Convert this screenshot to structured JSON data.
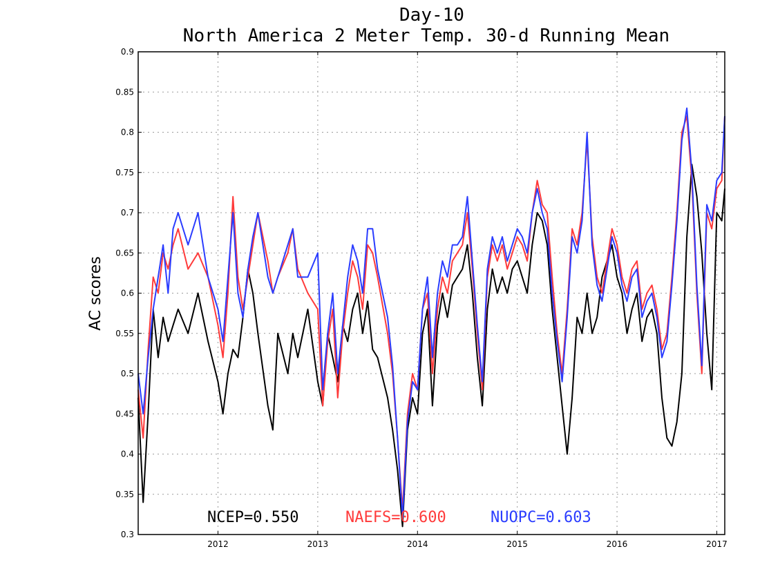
{
  "chart_data": {
    "type": "line",
    "title": "Day-10",
    "subtitle": "North America 2 Meter Temp. 30-d Running Mean",
    "xlabel": "",
    "ylabel": "AC scores",
    "ylim": [
      0.3,
      0.9
    ],
    "xlim": [
      2011.2,
      2017.08
    ],
    "x_ticks": [
      2012,
      2013,
      2014,
      2015,
      2016,
      2017
    ],
    "x_tick_labels": [
      "2012",
      "2013",
      "2014",
      "2015",
      "2016",
      "2017"
    ],
    "y_ticks": [
      0.3,
      0.35,
      0.4,
      0.45,
      0.5,
      0.55,
      0.6,
      0.65,
      0.7,
      0.75,
      0.8,
      0.85,
      0.9
    ],
    "y_tick_labels": [
      "0.3",
      "0.35",
      "0.4",
      "0.45",
      "0.5",
      "0.55",
      "0.6",
      "0.65",
      "0.7",
      "0.75",
      "0.8",
      "0.85",
      "0.9"
    ],
    "grid": true,
    "series": [
      {
        "name": "NCEP",
        "color": "#000000",
        "score_label": "NCEP=0.550",
        "x": [
          2011.2,
          2011.25,
          2011.3,
          2011.35,
          2011.4,
          2011.45,
          2011.5,
          2011.55,
          2011.6,
          2011.7,
          2011.8,
          2011.9,
          2012.0,
          2012.05,
          2012.1,
          2012.15,
          2012.2,
          2012.25,
          2012.3,
          2012.35,
          2012.4,
          2012.5,
          2012.55,
          2012.6,
          2012.7,
          2012.75,
          2012.8,
          2012.9,
          2013.0,
          2013.05,
          2013.1,
          2013.15,
          2013.2,
          2013.25,
          2013.3,
          2013.35,
          2013.4,
          2013.45,
          2013.5,
          2013.55,
          2013.6,
          2013.7,
          2013.75,
          2013.8,
          2013.85,
          2013.9,
          2013.95,
          2014.0,
          2014.05,
          2014.1,
          2014.15,
          2014.2,
          2014.25,
          2014.3,
          2014.35,
          2014.4,
          2014.45,
          2014.5,
          2014.55,
          2014.6,
          2014.65,
          2014.7,
          2014.75,
          2014.8,
          2014.85,
          2014.9,
          2014.95,
          2015.0,
          2015.05,
          2015.1,
          2015.15,
          2015.2,
          2015.25,
          2015.3,
          2015.35,
          2015.4,
          2015.45,
          2015.5,
          2015.55,
          2015.6,
          2015.65,
          2015.7,
          2015.75,
          2015.8,
          2015.85,
          2015.9,
          2015.95,
          2016.0,
          2016.05,
          2016.1,
          2016.15,
          2016.2,
          2016.25,
          2016.3,
          2016.35,
          2016.4,
          2016.45,
          2016.5,
          2016.55,
          2016.6,
          2016.65,
          2016.7,
          2016.75,
          2016.8,
          2016.85,
          2016.9,
          2016.95,
          2017.0,
          2017.05,
          2017.08
        ],
        "y": [
          0.47,
          0.34,
          0.45,
          0.58,
          0.52,
          0.57,
          0.54,
          0.56,
          0.58,
          0.55,
          0.6,
          0.54,
          0.49,
          0.45,
          0.5,
          0.53,
          0.52,
          0.57,
          0.63,
          0.6,
          0.55,
          0.46,
          0.43,
          0.55,
          0.5,
          0.55,
          0.52,
          0.58,
          0.49,
          0.46,
          0.55,
          0.52,
          0.49,
          0.56,
          0.54,
          0.58,
          0.6,
          0.55,
          0.59,
          0.53,
          0.52,
          0.47,
          0.43,
          0.38,
          0.31,
          0.43,
          0.47,
          0.45,
          0.55,
          0.58,
          0.46,
          0.56,
          0.6,
          0.57,
          0.61,
          0.62,
          0.63,
          0.66,
          0.6,
          0.52,
          0.46,
          0.58,
          0.63,
          0.6,
          0.62,
          0.6,
          0.63,
          0.64,
          0.62,
          0.6,
          0.66,
          0.7,
          0.69,
          0.66,
          0.58,
          0.52,
          0.46,
          0.4,
          0.47,
          0.57,
          0.55,
          0.6,
          0.55,
          0.57,
          0.62,
          0.64,
          0.66,
          0.62,
          0.6,
          0.55,
          0.58,
          0.6,
          0.54,
          0.57,
          0.58,
          0.55,
          0.47,
          0.42,
          0.41,
          0.44,
          0.5,
          0.67,
          0.76,
          0.72,
          0.65,
          0.55,
          0.48,
          0.7,
          0.69,
          0.73
        ]
      },
      {
        "name": "NAEFS",
        "color": "#ff3a3a",
        "score_label": "NAEFS=0.600",
        "x": [
          2011.2,
          2011.25,
          2011.3,
          2011.35,
          2011.4,
          2011.45,
          2011.5,
          2011.55,
          2011.6,
          2011.7,
          2011.8,
          2011.9,
          2012.0,
          2012.05,
          2012.1,
          2012.15,
          2012.2,
          2012.25,
          2012.3,
          2012.35,
          2012.4,
          2012.5,
          2012.55,
          2012.6,
          2012.7,
          2012.75,
          2012.8,
          2012.9,
          2013.0,
          2013.05,
          2013.1,
          2013.15,
          2013.2,
          2013.25,
          2013.3,
          2013.35,
          2013.4,
          2013.45,
          2013.5,
          2013.55,
          2013.6,
          2013.7,
          2013.75,
          2013.8,
          2013.85,
          2013.9,
          2013.95,
          2014.0,
          2014.05,
          2014.1,
          2014.15,
          2014.2,
          2014.25,
          2014.3,
          2014.35,
          2014.4,
          2014.45,
          2014.5,
          2014.55,
          2014.6,
          2014.65,
          2014.7,
          2014.75,
          2014.8,
          2014.85,
          2014.9,
          2014.95,
          2015.0,
          2015.05,
          2015.1,
          2015.15,
          2015.2,
          2015.25,
          2015.3,
          2015.35,
          2015.4,
          2015.45,
          2015.5,
          2015.55,
          2015.6,
          2015.65,
          2015.7,
          2015.75,
          2015.8,
          2015.85,
          2015.9,
          2015.95,
          2016.0,
          2016.05,
          2016.1,
          2016.15,
          2016.2,
          2016.25,
          2016.3,
          2016.35,
          2016.4,
          2016.45,
          2016.5,
          2016.55,
          2016.6,
          2016.65,
          2016.7,
          2016.75,
          2016.8,
          2016.85,
          2016.9,
          2016.95,
          2017.0,
          2017.05,
          2017.08
        ],
        "y": [
          0.48,
          0.42,
          0.53,
          0.62,
          0.6,
          0.65,
          0.63,
          0.66,
          0.68,
          0.63,
          0.65,
          0.62,
          0.56,
          0.52,
          0.6,
          0.72,
          0.62,
          0.58,
          0.62,
          0.66,
          0.7,
          0.64,
          0.6,
          0.62,
          0.65,
          0.68,
          0.63,
          0.6,
          0.58,
          0.46,
          0.54,
          0.58,
          0.47,
          0.55,
          0.6,
          0.64,
          0.62,
          0.58,
          0.66,
          0.65,
          0.62,
          0.55,
          0.5,
          0.42,
          0.33,
          0.45,
          0.5,
          0.48,
          0.58,
          0.6,
          0.5,
          0.58,
          0.62,
          0.6,
          0.64,
          0.65,
          0.66,
          0.7,
          0.63,
          0.55,
          0.48,
          0.62,
          0.66,
          0.64,
          0.66,
          0.63,
          0.65,
          0.67,
          0.66,
          0.64,
          0.7,
          0.74,
          0.71,
          0.7,
          0.62,
          0.55,
          0.5,
          0.58,
          0.68,
          0.66,
          0.7,
          0.79,
          0.67,
          0.62,
          0.6,
          0.64,
          0.68,
          0.66,
          0.62,
          0.6,
          0.63,
          0.64,
          0.58,
          0.6,
          0.61,
          0.58,
          0.53,
          0.55,
          0.62,
          0.7,
          0.8,
          0.82,
          0.74,
          0.6,
          0.5,
          0.7,
          0.68,
          0.73,
          0.74,
          0.82
        ]
      },
      {
        "name": "NUOPC",
        "color": "#2a3cff",
        "score_label": "NUOPC=0.603",
        "x": [
          2011.2,
          2011.25,
          2011.3,
          2011.35,
          2011.4,
          2011.45,
          2011.5,
          2011.55,
          2011.6,
          2011.7,
          2011.8,
          2011.9,
          2012.0,
          2012.05,
          2012.1,
          2012.15,
          2012.2,
          2012.25,
          2012.3,
          2012.35,
          2012.4,
          2012.5,
          2012.55,
          2012.6,
          2012.7,
          2012.75,
          2012.8,
          2012.9,
          2013.0,
          2013.05,
          2013.1,
          2013.15,
          2013.2,
          2013.25,
          2013.3,
          2013.35,
          2013.4,
          2013.45,
          2013.5,
          2013.55,
          2013.6,
          2013.7,
          2013.75,
          2013.8,
          2013.85,
          2013.9,
          2013.95,
          2014.0,
          2014.05,
          2014.1,
          2014.15,
          2014.2,
          2014.25,
          2014.3,
          2014.35,
          2014.4,
          2014.45,
          2014.5,
          2014.55,
          2014.6,
          2014.65,
          2014.7,
          2014.75,
          2014.8,
          2014.85,
          2014.9,
          2014.95,
          2015.0,
          2015.05,
          2015.1,
          2015.15,
          2015.2,
          2015.25,
          2015.3,
          2015.35,
          2015.4,
          2015.45,
          2015.5,
          2015.55,
          2015.6,
          2015.65,
          2015.7,
          2015.75,
          2015.8,
          2015.85,
          2015.9,
          2015.95,
          2016.0,
          2016.05,
          2016.1,
          2016.15,
          2016.2,
          2016.25,
          2016.3,
          2016.35,
          2016.4,
          2016.45,
          2016.5,
          2016.55,
          2016.6,
          2016.65,
          2016.7,
          2016.75,
          2016.8,
          2016.85,
          2016.9,
          2016.95,
          2017.0,
          2017.05,
          2017.08
        ],
        "y": [
          0.5,
          0.45,
          0.52,
          0.58,
          0.62,
          0.66,
          0.6,
          0.68,
          0.7,
          0.66,
          0.7,
          0.62,
          0.58,
          0.54,
          0.62,
          0.7,
          0.6,
          0.57,
          0.63,
          0.67,
          0.7,
          0.62,
          0.6,
          0.62,
          0.66,
          0.68,
          0.62,
          0.62,
          0.65,
          0.48,
          0.55,
          0.6,
          0.5,
          0.56,
          0.62,
          0.66,
          0.64,
          0.6,
          0.68,
          0.68,
          0.63,
          0.57,
          0.51,
          0.42,
          0.32,
          0.44,
          0.49,
          0.48,
          0.58,
          0.62,
          0.52,
          0.6,
          0.64,
          0.62,
          0.66,
          0.66,
          0.67,
          0.72,
          0.64,
          0.56,
          0.49,
          0.63,
          0.67,
          0.65,
          0.67,
          0.64,
          0.66,
          0.68,
          0.67,
          0.65,
          0.7,
          0.73,
          0.7,
          0.68,
          0.6,
          0.54,
          0.49,
          0.57,
          0.67,
          0.65,
          0.69,
          0.8,
          0.66,
          0.61,
          0.59,
          0.63,
          0.67,
          0.65,
          0.61,
          0.59,
          0.62,
          0.63,
          0.57,
          0.59,
          0.6,
          0.57,
          0.52,
          0.54,
          0.61,
          0.69,
          0.79,
          0.83,
          0.75,
          0.61,
          0.51,
          0.71,
          0.69,
          0.74,
          0.75,
          0.82
        ]
      }
    ]
  }
}
